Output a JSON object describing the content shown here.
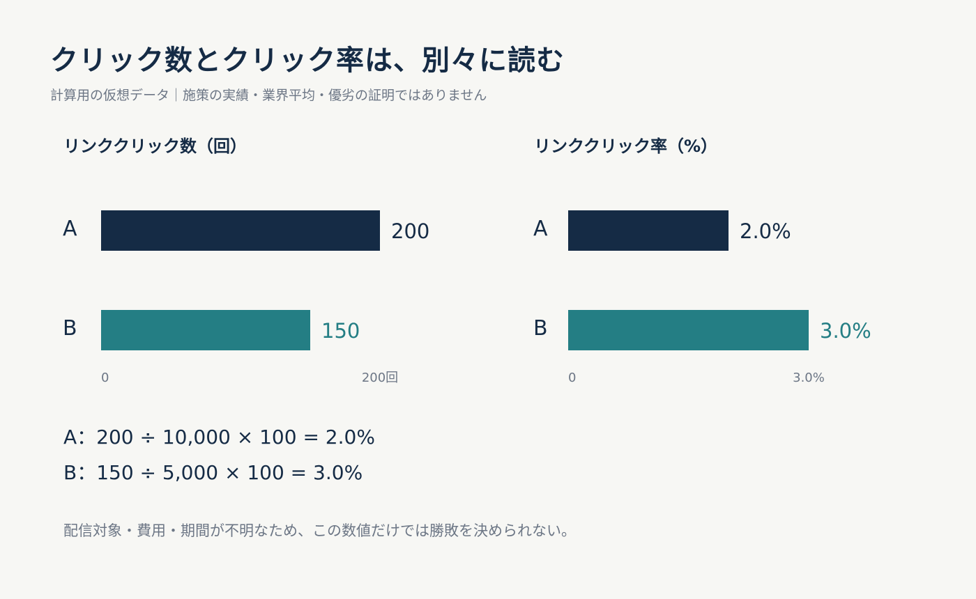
{
  "title": "クリック数とクリック率は、別々に読む",
  "subtitle": "計算用の仮想データ｜施策の実績・業界平均・優劣の証明ではありません",
  "colors": {
    "background": "#f7f7f4",
    "series_a": "#152b45",
    "series_b": "#247e84",
    "muted_text": "#6c7685"
  },
  "chart_data": [
    {
      "type": "bar",
      "orientation": "horizontal",
      "title": "リンククリック数（回）",
      "categories": [
        "A",
        "B"
      ],
      "values": [
        200,
        150
      ],
      "value_labels": [
        "200",
        "150"
      ],
      "xlim": [
        0,
        200
      ],
      "tick_labels": [
        "0",
        "200回"
      ],
      "grid": false
    },
    {
      "type": "bar",
      "orientation": "horizontal",
      "title": "リンククリック率（%）",
      "categories": [
        "A",
        "B"
      ],
      "values": [
        2.0,
        3.0
      ],
      "value_labels": [
        "2.0%",
        "3.0%"
      ],
      "xlim": [
        0,
        3.0
      ],
      "tick_labels": [
        "0",
        "3.0%"
      ],
      "grid": false
    }
  ],
  "formulas": [
    "A：200 ÷ 10,000 × 100 = 2.0%",
    "B：150 ÷ 5,000 × 100 = 3.0%"
  ],
  "note": "配信対象・費用・期間が不明なため、この数値だけでは勝敗を決められない。"
}
